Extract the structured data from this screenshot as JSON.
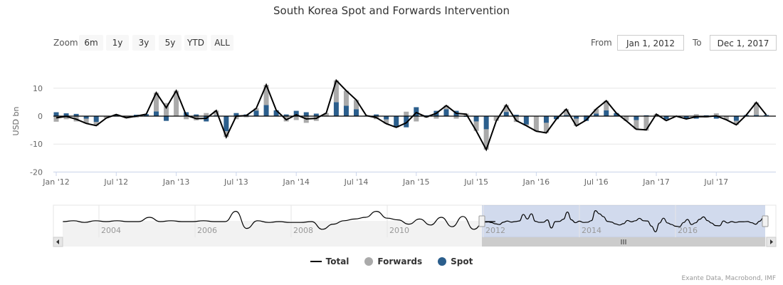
{
  "title": "South Korea Spot and Forwards Intervention",
  "range_selector": {
    "label": "Zoom",
    "buttons": [
      "6m",
      "1y",
      "3y",
      "5y",
      "YTD",
      "ALL"
    ],
    "from_label": "From",
    "from_value": "Jan 1, 2012",
    "to_label": "To",
    "to_value": "Dec 1, 2017"
  },
  "legend": [
    {
      "name": "Total",
      "color": "#000000"
    },
    {
      "name": "Forwards",
      "color": "#aaaaaa"
    },
    {
      "name": "Spot",
      "color": "#2b5e8c"
    }
  ],
  "credits": "Exante Data, Macrobond, IMF",
  "chart_data": {
    "type": "bar",
    "title": "South Korea Spot and Forwards Intervention",
    "ylabel": "USD bn",
    "ylim": [
      -20,
      15
    ],
    "yticks": [
      10,
      0,
      -10,
      -20
    ],
    "xticks": [
      "Jan '12",
      "Jul '12",
      "Jan '13",
      "Jul '13",
      "Jan '14",
      "Jul '14",
      "Jan '15",
      "Jul '15",
      "Jan '16",
      "Jul '16",
      "Jan '17",
      "Jul '17"
    ],
    "x_start": "2012-01",
    "x_end": "2017-12",
    "grid": true,
    "legend_position": "bottom",
    "series": [
      {
        "name": "Spot",
        "type": "column",
        "stacked": true,
        "values": [
          1.4,
          1.0,
          0.8,
          -0.9,
          -2.1,
          0,
          0.6,
          0,
          0.5,
          0.7,
          1.7,
          -1.7,
          0,
          1.4,
          0.6,
          -1.9,
          0.3,
          -5.4,
          1.1,
          0.6,
          2.0,
          4.0,
          2.1,
          0.6,
          1.9,
          1.4,
          0.9,
          0,
          5.0,
          3.7,
          2.5,
          0.2,
          0.6,
          -1.2,
          -4.0,
          -4.0,
          3.2,
          0.3,
          1.9,
          2.5,
          1.9,
          -0.2,
          -1.9,
          -4.7,
          0,
          1.5,
          0.5,
          -3.0,
          0,
          -2.4,
          -1.1,
          0.4,
          -0.9,
          -1.7,
          0.9,
          2.1,
          1.1,
          0,
          -1.4,
          0.3,
          0,
          -1.1,
          0,
          -1.0,
          -0.9,
          0.3,
          -0.9,
          0,
          -1.7,
          0.4,
          0.4,
          0.4
        ]
      },
      {
        "name": "Forwards",
        "type": "column",
        "stacked": true,
        "values": [
          -2.0,
          -1.1,
          -1.9,
          -1.7,
          -1.3,
          -0.7,
          0,
          -0.6,
          -0.5,
          0,
          6.7,
          4.7,
          9.1,
          -1.1,
          -1.5,
          1.1,
          1.7,
          -2.1,
          -1.1,
          -0.4,
          0.8,
          7.2,
          0,
          -1.9,
          -1.4,
          -2.4,
          -1.7,
          1.1,
          7.8,
          5.4,
          3.3,
          0,
          -1.1,
          -1.5,
          0,
          1.6,
          -1.9,
          -0.6,
          -0.9,
          1.3,
          -0.9,
          0.9,
          -3.4,
          -7.3,
          -1.7,
          2.5,
          -2.1,
          -0.4,
          -5.4,
          -3.6,
          0,
          2.1,
          -2.6,
          0.3,
          1.7,
          3.4,
          0,
          -1.7,
          -3.3,
          -5.2,
          0.7,
          -0.5,
          0,
          0,
          0.7,
          -0.5,
          1.0,
          -1.3,
          -1.4,
          0,
          4.5,
          0
        ]
      },
      {
        "name": "Total",
        "type": "line"
      }
    ],
    "navigator": {
      "xticks": [
        "2004",
        "2006",
        "2008",
        "2010",
        "2012",
        "2014",
        "2016"
      ],
      "selected_range": [
        "2012-01",
        "2017-12"
      ],
      "early_quarterly_total_2003_2011": [
        0,
        1,
        -1,
        1,
        0,
        1,
        0,
        0,
        5,
        0,
        1,
        0,
        0,
        1,
        0,
        0,
        12,
        -8,
        1,
        -1,
        0,
        -1,
        -1,
        0,
        -9,
        -3,
        1,
        3,
        5,
        12,
        4,
        2,
        -3,
        3,
        -4,
        5,
        -6,
        6,
        -9,
        0,
        0
      ]
    }
  }
}
